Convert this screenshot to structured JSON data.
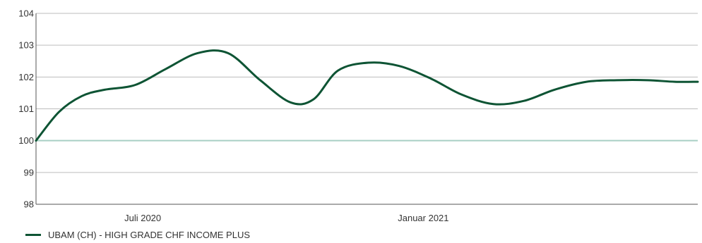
{
  "chart_data": {
    "type": "line",
    "ylim": [
      98,
      104
    ],
    "yticks": [
      "98",
      "99",
      "100",
      "101",
      "102",
      "103",
      "104"
    ],
    "xticks": [
      {
        "label": "Juli 2020",
        "x": "2020-07-01"
      },
      {
        "label": "Januar 2021",
        "x": "2021-01-01"
      }
    ],
    "xlim": [
      "2020-04-22",
      "2021-06-30"
    ],
    "baseline": 100,
    "grid": true,
    "legend_position": "bottom-left",
    "colors": {
      "line": "#0e5434",
      "grid": "#bdbdbd",
      "baseline": "#a8cfc4",
      "axis": "#555555"
    },
    "series": [
      {
        "name": "UBAM (CH) - HIGH GRADE CHF INCOME PLUS",
        "x": [
          "2020-04-22",
          "2020-05-07",
          "2020-05-22",
          "2020-06-06",
          "2020-06-26",
          "2020-07-16",
          "2020-08-06",
          "2020-08-26",
          "2020-09-16",
          "2020-10-06",
          "2020-10-21",
          "2020-11-06",
          "2020-11-26",
          "2020-12-16",
          "2021-01-06",
          "2021-01-26",
          "2021-02-16",
          "2021-03-08",
          "2021-03-28",
          "2021-04-18",
          "2021-05-08",
          "2021-05-28",
          "2021-06-15",
          "2021-06-30"
        ],
        "values": [
          100.0,
          100.9,
          101.4,
          101.6,
          101.75,
          102.25,
          102.75,
          102.75,
          101.9,
          101.2,
          101.3,
          102.2,
          102.45,
          102.35,
          101.95,
          101.45,
          101.15,
          101.25,
          101.6,
          101.85,
          101.9,
          101.9,
          101.85,
          101.85
        ]
      }
    ]
  }
}
